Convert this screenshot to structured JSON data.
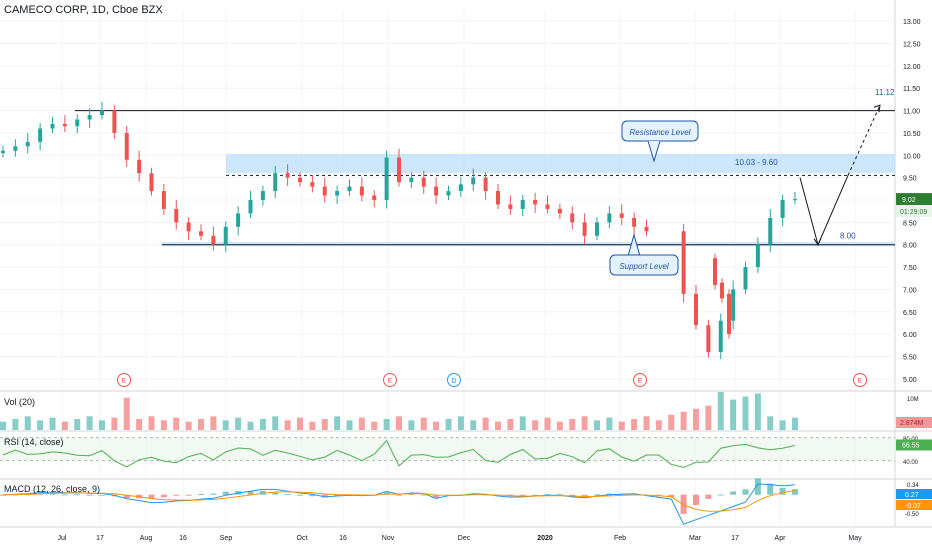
{
  "header": {
    "title": "CAMECO CORP, 1D, Cboe BZX"
  },
  "panes": {
    "volume": {
      "label": "Vol (20)"
    },
    "rsi": {
      "label": "RSI (14, close)"
    },
    "macd": {
      "label": "MACD (12, 26, close, 9)"
    }
  },
  "colors": {
    "up": "#26a69a",
    "down": "#ef5350",
    "zone": "#bbdefb",
    "annot": "#1e54a8",
    "rsi": "#4caf50",
    "macd_line": "#2196f3",
    "signal_line": "#ff9800",
    "hist_up": "#26a69a",
    "hist_down": "#ef5350",
    "axis_text": "#131722"
  },
  "chart_data": [
    {
      "type": "candlestick",
      "title": "CAMECO CORP, 1D, Cboe BZX",
      "x_axis_labels": [
        "Jul",
        "17",
        "Aug",
        "16",
        "Sep",
        "Oct",
        "16",
        "Nov",
        "Dec",
        "2020",
        "Feb",
        "Mar",
        "17",
        "Apr",
        "May"
      ],
      "y_ticks": [
        "13.00",
        "12.50",
        "12.00",
        "11.50",
        "11.00",
        "10.50",
        "10.00",
        "9.50",
        "9.00",
        "8.50",
        "8.00",
        "7.50",
        "7.00",
        "6.50",
        "6.00",
        "5.50",
        "5.00"
      ],
      "ylim": [
        4.75,
        13.25
      ],
      "last_price": "9.02",
      "countdown": "01:29:09",
      "close_series": [
        10.1,
        10.2,
        10.3,
        10.6,
        10.7,
        10.65,
        10.8,
        10.9,
        11.0,
        10.5,
        9.9,
        9.6,
        9.2,
        8.8,
        8.5,
        8.3,
        8.2,
        8.0,
        8.4,
        8.7,
        9.0,
        9.2,
        9.6,
        9.5,
        9.4,
        9.3,
        9.1,
        9.2,
        9.3,
        9.1,
        9.0,
        9.95,
        9.4,
        9.5,
        9.3,
        9.1,
        9.2,
        9.35,
        9.5,
        9.2,
        8.9,
        8.8,
        9.0,
        8.9,
        8.8,
        8.7,
        8.5,
        8.2,
        8.5,
        8.7,
        8.6,
        8.4,
        8.3,
        8.1,
        7.6,
        6.9,
        6.2,
        5.6,
        6.3,
        7.0,
        7.5,
        8.0,
        8.6,
        9.0,
        9.02
      ],
      "annotations": {
        "resistance_label": "Resistance Level",
        "support_label": "Support Level",
        "resistance_range": "10.03 - 9.60",
        "support_value": "8.00",
        "target_value": "11.12"
      },
      "levels": {
        "resistance_zone": [
          9.6,
          10.03
        ],
        "support_zone": [
          7.97,
          8.06
        ],
        "top_line": 11.0,
        "dashed_line": 9.55,
        "target": 11.12
      },
      "projection_path": [
        9.5,
        8.0,
        9.55,
        11.12
      ],
      "earnings_markers": [
        "E",
        "E",
        "D",
        "E",
        "E"
      ]
    },
    {
      "type": "bar",
      "title": "Vol (20)",
      "axis_ticks": [
        "10M"
      ],
      "last_value": "2.874M",
      "ylim": [
        0,
        10
      ]
    },
    {
      "type": "line",
      "title": "RSI (14, close)",
      "axis_ticks": [
        "80.00",
        "40.00"
      ],
      "last_value": "66.55",
      "band": [
        40,
        80
      ],
      "ylim": [
        10,
        90
      ]
    },
    {
      "type": "line",
      "title": "MACD (12, 26, close, 9)",
      "axis_ticks": [
        "0.34",
        "-0.50"
      ],
      "last_values": [
        "0.27",
        "-0.07"
      ],
      "ylim": [
        -0.85,
        0.4
      ]
    }
  ]
}
